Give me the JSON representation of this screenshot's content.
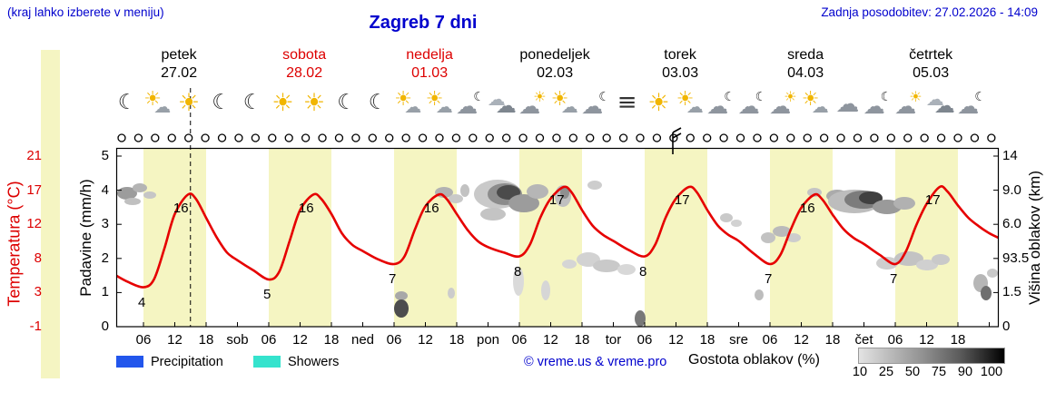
{
  "header": {
    "hint": "(kraj lahko izberete v meniju)",
    "title": "Zagreb 7 dni",
    "updated": "Zadnja posodobitev: 27.02.2026 - 14:09"
  },
  "days": [
    {
      "name": "petek",
      "date": "27.02",
      "red": false
    },
    {
      "name": "sobota",
      "date": "28.02",
      "red": true
    },
    {
      "name": "nedelja",
      "date": "01.03",
      "red": true
    },
    {
      "name": "ponedeljek",
      "date": "02.03",
      "red": false
    },
    {
      "name": "torek",
      "date": "03.03",
      "red": false
    },
    {
      "name": "sreda",
      "date": "04.03",
      "red": false
    },
    {
      "name": "četrtek",
      "date": "05.03",
      "red": false
    }
  ],
  "icons": [
    "moon",
    "sun-cloud",
    "sun",
    "moon",
    "moon",
    "sun",
    "sun",
    "moon",
    "moon",
    "sun-cloud",
    "sun-cloud",
    "cloud-moon",
    "clouds",
    "cloud-sun",
    "sun-cloud",
    "cloud-moon",
    "wind",
    "sun",
    "sun-cloud",
    "cloud-moon",
    "cloud-moon",
    "cloud-sun",
    "sun-cloud",
    "cloud",
    "cloud-moon",
    "cloud-sun",
    "clouds",
    "cloud-moon"
  ],
  "axes": {
    "temp_label": "Temperatura (°C)",
    "temp_ticks": [
      "21",
      "17",
      "12",
      "8",
      "3",
      "-1"
    ],
    "precip_label": "Padavine (mm/h)",
    "precip_ticks": [
      "5",
      "4",
      "3",
      "2",
      "1",
      "0"
    ],
    "cloud_label": "Višina oblakov (km)",
    "cloud_ticks": [
      "14",
      "9.0",
      "6.0",
      "93.5",
      "1.5",
      "0"
    ],
    "x_ticks": [
      "06",
      "12",
      "18",
      "sob",
      "06",
      "12",
      "18",
      "ned",
      "06",
      "12",
      "18",
      "pon",
      "06",
      "12",
      "18",
      "tor",
      "06",
      "12",
      "18",
      "sre",
      "06",
      "12",
      "18",
      "čet",
      "06",
      "12",
      "18"
    ]
  },
  "legend": {
    "precipitation": "Precipitation",
    "showers": "Showers",
    "credit": "© vreme.us & vreme.pro",
    "cloud_density": "Gostota oblakov (%)",
    "density_ticks": [
      "10",
      "25",
      "50",
      "75",
      "90",
      "100"
    ]
  },
  "theme": {
    "day_band": "#f5f5c2",
    "curve_red": "#e60000",
    "blue_text": "#0000cd",
    "weekend_red": "#dd0000",
    "precip_swatch": "#2256ec",
    "showers_swatch": "#35e3cd"
  },
  "chart_data": {
    "type": "line",
    "title": "Zagreb 7 dni",
    "now_hour": 15,
    "x_unit": "hours_from_friday_00h",
    "x_range": [
      0.8,
      169.8
    ],
    "temperature_axis": {
      "label": "Temperatura (°C)",
      "ticks": [
        21,
        17,
        12,
        8,
        3,
        -1
      ]
    },
    "precipitation_axis": {
      "label": "Padavine (mm/h)",
      "ticks": [
        5,
        4,
        3,
        2,
        1,
        0
      ]
    },
    "cloud_height_axis": {
      "label": "Višina oblakov (km)",
      "ticks": [
        "14",
        "9.0",
        "6.0",
        "93.5",
        "1.5",
        "0"
      ]
    },
    "daily_min_C": [
      4,
      5,
      7,
      8,
      8,
      7,
      7
    ],
    "daily_max_C": [
      16,
      16,
      16,
      17,
      17,
      16,
      17
    ],
    "series": [
      {
        "name": "Temperatura",
        "unit": "°C",
        "color": "#e60000",
        "points": [
          [
            0.8,
            5.5
          ],
          [
            3,
            4.7
          ],
          [
            6,
            4
          ],
          [
            8,
            5
          ],
          [
            10,
            9
          ],
          [
            12,
            13.5
          ],
          [
            14.5,
            16
          ],
          [
            16,
            15.5
          ],
          [
            18,
            13
          ],
          [
            20,
            10.5
          ],
          [
            22,
            8.5
          ],
          [
            24,
            7.5
          ],
          [
            27,
            6.2
          ],
          [
            30,
            5
          ],
          [
            32,
            6
          ],
          [
            34,
            10
          ],
          [
            36,
            14
          ],
          [
            38.5,
            16
          ],
          [
            40,
            15.5
          ],
          [
            42,
            13.5
          ],
          [
            44,
            11
          ],
          [
            46,
            9.5
          ],
          [
            48,
            8.7
          ],
          [
            51,
            7.6
          ],
          [
            54,
            7
          ],
          [
            56,
            8
          ],
          [
            58,
            11.5
          ],
          [
            60,
            14.5
          ],
          [
            62.5,
            16
          ],
          [
            64,
            15.5
          ],
          [
            66,
            13.5
          ],
          [
            68,
            11.5
          ],
          [
            70,
            10
          ],
          [
            72,
            9.2
          ],
          [
            75,
            8.5
          ],
          [
            78,
            8
          ],
          [
            80,
            9.5
          ],
          [
            82,
            13
          ],
          [
            84,
            15.5
          ],
          [
            86.5,
            17
          ],
          [
            88,
            16.3
          ],
          [
            90,
            14
          ],
          [
            92,
            12
          ],
          [
            94,
            10.8
          ],
          [
            96,
            10
          ],
          [
            99,
            8.8
          ],
          [
            102,
            8
          ],
          [
            104,
            9.5
          ],
          [
            106,
            13
          ],
          [
            108,
            15.5
          ],
          [
            110.5,
            17
          ],
          [
            112,
            16.3
          ],
          [
            114,
            14
          ],
          [
            116,
            12
          ],
          [
            118,
            10.8
          ],
          [
            120,
            10
          ],
          [
            123,
            8.3
          ],
          [
            126,
            7
          ],
          [
            128,
            8.2
          ],
          [
            130,
            11.5
          ],
          [
            132,
            14.3
          ],
          [
            134.5,
            16
          ],
          [
            136,
            15.4
          ],
          [
            138,
            13.4
          ],
          [
            140,
            11.6
          ],
          [
            142,
            10.4
          ],
          [
            144,
            9.6
          ],
          [
            147,
            8.2
          ],
          [
            150,
            7
          ],
          [
            152,
            8.6
          ],
          [
            154,
            12
          ],
          [
            156,
            14.8
          ],
          [
            158.5,
            17
          ],
          [
            160,
            16.4
          ],
          [
            162,
            14.6
          ],
          [
            164,
            13
          ],
          [
            166,
            11.9
          ],
          [
            168,
            11
          ],
          [
            169.8,
            10.4
          ]
        ]
      }
    ],
    "extreme_labels": [
      {
        "label": "4",
        "h": 6,
        "v": 4,
        "type": "min"
      },
      {
        "label": "16",
        "h": 14.5,
        "v": 16,
        "type": "max"
      },
      {
        "label": "5",
        "h": 30,
        "v": 5,
        "type": "min"
      },
      {
        "label": "16",
        "h": 38.5,
        "v": 16,
        "type": "max"
      },
      {
        "label": "7",
        "h": 54,
        "v": 7,
        "type": "min"
      },
      {
        "label": "16",
        "h": 62.5,
        "v": 16,
        "type": "max"
      },
      {
        "label": "8",
        "h": 78,
        "v": 8,
        "type": "min"
      },
      {
        "label": "17",
        "h": 86.5,
        "v": 17,
        "type": "max"
      },
      {
        "label": "8",
        "h": 102,
        "v": 8,
        "type": "min"
      },
      {
        "label": "17",
        "h": 110.5,
        "v": 17,
        "type": "max"
      },
      {
        "label": "7",
        "h": 126,
        "v": 7,
        "type": "min"
      },
      {
        "label": "16",
        "h": 134.5,
        "v": 16,
        "type": "max"
      },
      {
        "label": "7",
        "h": 150,
        "v": 7,
        "type": "min"
      },
      {
        "label": "17",
        "h": 158.5,
        "v": 17,
        "type": "max"
      }
    ]
  },
  "clouds": [
    [
      140,
      213,
      11,
      7,
      "#9c9c9c"
    ],
    [
      154,
      207,
      8,
      5,
      "#b4b4b4"
    ],
    [
      165,
      215,
      7,
      4,
      "#c6c6c6"
    ],
    [
      146,
      222,
      9,
      4,
      "#c0c0c0"
    ],
    [
      489,
      212,
      10,
      6,
      "#b2b2b2"
    ],
    [
      502,
      219,
      8,
      5,
      "#c9c9c9"
    ],
    [
      512,
      210,
      5,
      7,
      "#c2c2c2"
    ],
    [
      548,
      214,
      26,
      16,
      "#c9c9c9"
    ],
    [
      556,
      214,
      19,
      12,
      "#8c8c8c"
    ],
    [
      560,
      212,
      13,
      8,
      "#4b4b4b"
    ],
    [
      577,
      224,
      17,
      10,
      "#9c9c9c"
    ],
    [
      592,
      211,
      12,
      8,
      "#b6b6b6"
    ],
    [
      543,
      236,
      14,
      7,
      "#c4c4c4"
    ],
    [
      571,
      310,
      6,
      16,
      "#dadada"
    ],
    [
      601,
      320,
      5,
      11,
      "#d6d6d6"
    ],
    [
      620,
      216,
      9,
      12,
      "#c0c0c0"
    ],
    [
      622,
      212,
      5,
      7,
      "#8f8f8f"
    ],
    [
      655,
      204,
      8,
      5,
      "#cdcdcd"
    ],
    [
      648,
      286,
      13,
      8,
      "#d2d2d2"
    ],
    [
      668,
      293,
      15,
      7,
      "#c9c9c9"
    ],
    [
      690,
      297,
      10,
      6,
      "#d8d8d8"
    ],
    [
      627,
      291,
      8,
      5,
      "#d5d5d5"
    ],
    [
      705,
      351,
      6,
      9,
      "#787878"
    ],
    [
      442,
      326,
      7,
      5,
      "#a8a8a8"
    ],
    [
      442,
      340,
      8,
      10,
      "#4d4d4d"
    ],
    [
      497,
      323,
      4,
      6,
      "#cccccc"
    ],
    [
      800,
      240,
      7,
      5,
      "#c9c9c9"
    ],
    [
      811,
      246,
      6,
      4,
      "#d2d2d2"
    ],
    [
      846,
      262,
      8,
      6,
      "#c2c2c2"
    ],
    [
      861,
      255,
      10,
      6,
      "#bababa"
    ],
    [
      874,
      262,
      8,
      5,
      "#cdcdcd"
    ],
    [
      836,
      325,
      5,
      6,
      "#bdbdbd"
    ],
    [
      922,
      216,
      12,
      7,
      "#ababab"
    ],
    [
      941,
      222,
      29,
      13,
      "#bdbdbd"
    ],
    [
      951,
      220,
      21,
      10,
      "#7c7c7c"
    ],
    [
      959,
      218,
      13,
      7,
      "#404040"
    ],
    [
      977,
      228,
      16,
      8,
      "#9a9a9a"
    ],
    [
      996,
      224,
      12,
      7,
      "#b1b1b1"
    ],
    [
      897,
      212,
      8,
      5,
      "#c5c5c5"
    ],
    [
      977,
      290,
      12,
      7,
      "#cecece"
    ],
    [
      1001,
      285,
      16,
      8,
      "#c3c3c3"
    ],
    [
      1021,
      292,
      12,
      6,
      "#d0d0d0"
    ],
    [
      1036,
      286,
      10,
      6,
      "#c9c9c9"
    ],
    [
      1080,
      312,
      8,
      10,
      "#b6b6b6"
    ],
    [
      1086,
      323,
      6,
      8,
      "#6f6f6f"
    ],
    [
      1093,
      301,
      6,
      5,
      "#c9c9c9"
    ]
  ]
}
